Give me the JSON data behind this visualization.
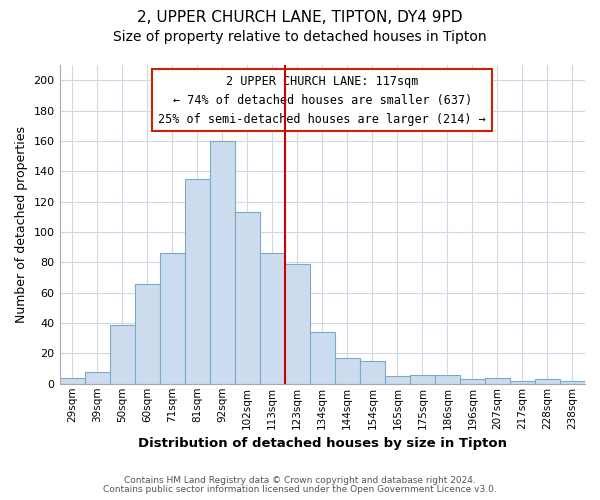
{
  "title": "2, UPPER CHURCH LANE, TIPTON, DY4 9PD",
  "subtitle": "Size of property relative to detached houses in Tipton",
  "xlabel": "Distribution of detached houses by size in Tipton",
  "ylabel": "Number of detached properties",
  "bar_color": "#ccdcee",
  "bar_edge_color": "#7aaac8",
  "categories": [
    "29sqm",
    "39sqm",
    "50sqm",
    "60sqm",
    "71sqm",
    "81sqm",
    "92sqm",
    "102sqm",
    "113sqm",
    "123sqm",
    "134sqm",
    "144sqm",
    "154sqm",
    "165sqm",
    "175sqm",
    "186sqm",
    "196sqm",
    "207sqm",
    "217sqm",
    "228sqm",
    "238sqm"
  ],
  "values": [
    4,
    8,
    39,
    66,
    86,
    135,
    160,
    113,
    86,
    79,
    34,
    17,
    15,
    5,
    6,
    6,
    3,
    4,
    2,
    3,
    2
  ],
  "vline_x": 8.5,
  "vline_color": "#cc0000",
  "ylim": [
    0,
    210
  ],
  "yticks": [
    0,
    20,
    40,
    60,
    80,
    100,
    120,
    140,
    160,
    180,
    200
  ],
  "annotation_title": "2 UPPER CHURCH LANE: 117sqm",
  "annotation_line1": "← 74% of detached houses are smaller (637)",
  "annotation_line2": "25% of semi-detached houses are larger (214) →",
  "footer1": "Contains HM Land Registry data © Crown copyright and database right 2024.",
  "footer2": "Contains public sector information licensed under the Open Government Licence v3.0.",
  "background_color": "#ffffff",
  "grid_color": "#d0d8e8",
  "title_fontsize": 11,
  "subtitle_fontsize": 10,
  "xlabel_fontsize": 9.5,
  "ylabel_fontsize": 9
}
